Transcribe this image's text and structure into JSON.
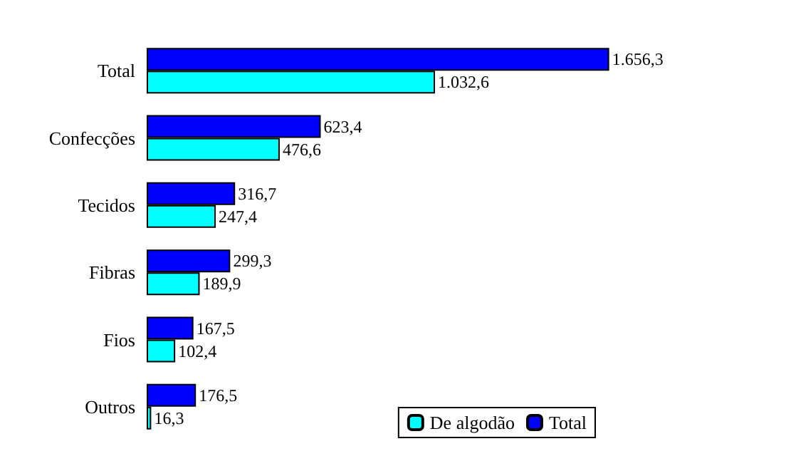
{
  "chart_data": {
    "type": "bar",
    "orientation": "horizontal",
    "categories": [
      "Total",
      "Confecções",
      "Tecidos",
      "Fibras",
      "Fios",
      "Outros"
    ],
    "series": [
      {
        "name": "De algodão",
        "color": "#00ffff",
        "values": [
          1032.6,
          476.6,
          247.4,
          189.9,
          102.4,
          16.3
        ],
        "value_labels": [
          "1.032,6",
          "476,6",
          "247,4",
          "189,9",
          "102,4",
          "16,3"
        ]
      },
      {
        "name": "Total",
        "color": "#0000ff",
        "values": [
          1656.3,
          623.4,
          316.7,
          299.3,
          167.5,
          176.5
        ],
        "value_labels": [
          "1.656,3",
          "623,4",
          "316,7",
          "299,3",
          "167,5",
          "176,5"
        ]
      }
    ],
    "legend": "bottom right",
    "grid": false
  }
}
